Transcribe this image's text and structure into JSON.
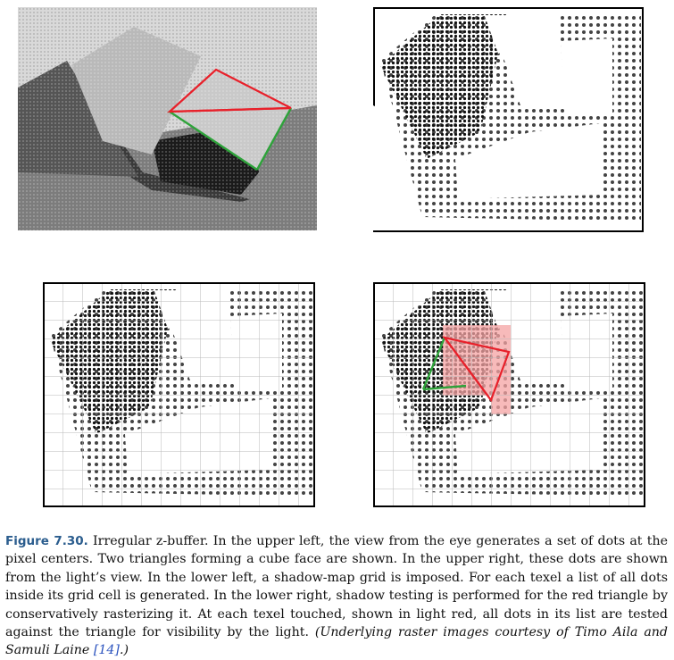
{
  "figure": {
    "label": "Figure 7.30.",
    "caption_text": " Irregular z-buffer. In the upper left, the view from the eye generates a set of dots at the pixel centers. Two triangles forming a cube face are shown. In the upper right, these dots are shown from the light’s view. In the lower left, a shadow-map grid is imposed. For each texel a list of all dots inside its grid cell is generated. In the lower right, shadow testing is performed for the red triangle by conservatively rasterizing it. At each texel touched, shown in light red, all dots in its list are tested against the triangle for visibility by the light. ",
    "credit_before_ref": "(Underlying raster images courtesy of Timo Aila and Samuli Laine ",
    "credit_ref": "[14]",
    "credit_after_ref": ".)"
  },
  "colors": {
    "caption_label": "#2b5d8e",
    "triangle_red": "#e8202a",
    "triangle_green": "#2ea33a",
    "texel_highlight": "#f4a3a3",
    "grid_line": "#b9b9b9"
  },
  "panels": [
    {
      "id": "upper-left",
      "content": "view from the eye, dots at pixel centers"
    },
    {
      "id": "upper-right",
      "content": "dots from the light's view"
    },
    {
      "id": "lower-left",
      "content": "shadow-map grid imposed"
    },
    {
      "id": "lower-right",
      "content": "conservative rasterization of red triangle"
    }
  ]
}
